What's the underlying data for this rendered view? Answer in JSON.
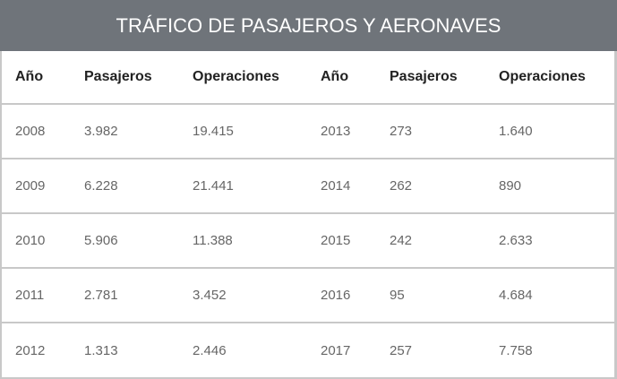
{
  "header": {
    "title": "TRÁFICO DE PASAJEROS Y AERONAVES"
  },
  "colors": {
    "header_bg": "#6f747a",
    "header_text": "#ffffff",
    "border": "#c8c8c8",
    "cell_text": "#666666",
    "head_text": "#222222"
  },
  "table": {
    "columns": [
      "Año",
      "Pasajeros",
      "Operaciones",
      "Año",
      "Pasajeros",
      "Operaciones"
    ],
    "rows": [
      [
        "2008",
        "3.982",
        "19.415",
        "2013",
        "273",
        "1.640"
      ],
      [
        "2009",
        "6.228",
        "21.441",
        "2014",
        "262",
        "890"
      ],
      [
        "2010",
        "5.906",
        "11.388",
        "2015",
        "242",
        "2.633"
      ],
      [
        "2011",
        "2.781",
        "3.452",
        "2016",
        "95",
        "4.684"
      ],
      [
        "2012",
        "1.313",
        "2.446",
        "2017",
        "257",
        "7.758"
      ]
    ]
  }
}
